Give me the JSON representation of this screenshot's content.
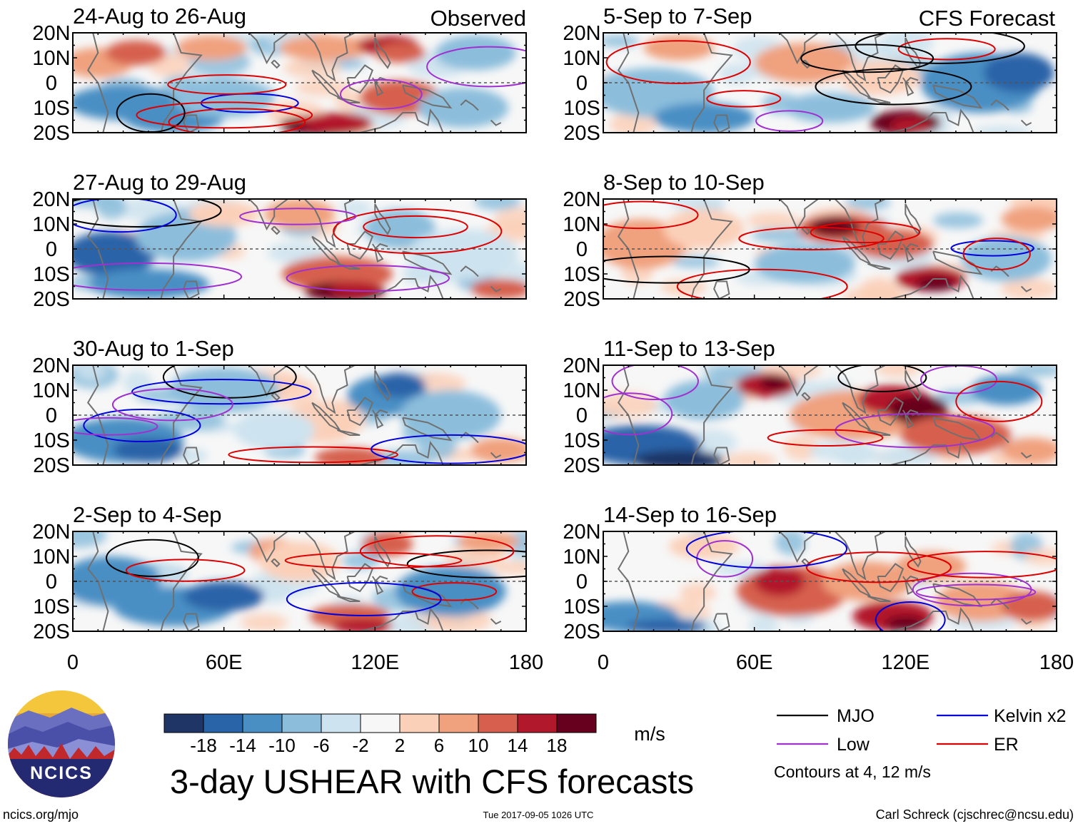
{
  "figure": {
    "title": "3-day USHEAR with CFS forecasts",
    "site": "ncics.org/mjo",
    "timestamp": "Tue 2017-09-05 1026 UTC",
    "author": "Carl Schreck (cjschrec@ncsu.edu)",
    "logo_text": "NCICS",
    "units": "m/s",
    "contours_note": "Contours at 4, 12 m/s"
  },
  "chart_data": {
    "type": "heatmap",
    "variable": "USHEAR",
    "columns": [
      {
        "label": "Observed",
        "panels": [
          "24-Aug to 26-Aug",
          "27-Aug to 29-Aug",
          "30-Aug to 1-Sep",
          "2-Sep to 4-Sep"
        ]
      },
      {
        "label": "CFS Forecast",
        "panels": [
          "5-Sep to 7-Sep",
          "8-Sep to 10-Sep",
          "11-Sep to 13-Sep",
          "14-Sep to 16-Sep"
        ]
      }
    ],
    "x_axis": {
      "range": [
        0,
        180
      ],
      "ticks": [
        0,
        60,
        120,
        180
      ],
      "tick_labels": [
        "0",
        "60E",
        "120E",
        "180"
      ]
    },
    "y_axis": {
      "range": [
        -20,
        20
      ],
      "ticks": [
        20,
        10,
        0,
        -10,
        -20
      ],
      "tick_labels": [
        "20N",
        "10N",
        "0",
        "10S",
        "20S"
      ]
    },
    "colorbar": {
      "levels": [
        "-18",
        "-14",
        "-10",
        "-6",
        "-2",
        "2",
        "6",
        "10",
        "14",
        "18"
      ],
      "colors": [
        "#1e3566",
        "#2a64a8",
        "#4a8fc4",
        "#8cbedc",
        "#cde3ef",
        "#f7f7f7",
        "#fbd0b9",
        "#f0a17e",
        "#d6604d",
        "#b2182b",
        "#67001f"
      ]
    },
    "legend": [
      {
        "label": "MJO",
        "color": "#000000"
      },
      {
        "label": "Kelvin x2",
        "color": "#0000dd"
      },
      {
        "label": "Low",
        "color": "#a030d0"
      },
      {
        "label": "ER",
        "color": "#dd0000"
      }
    ],
    "contour_levels": [
      4,
      12
    ]
  }
}
